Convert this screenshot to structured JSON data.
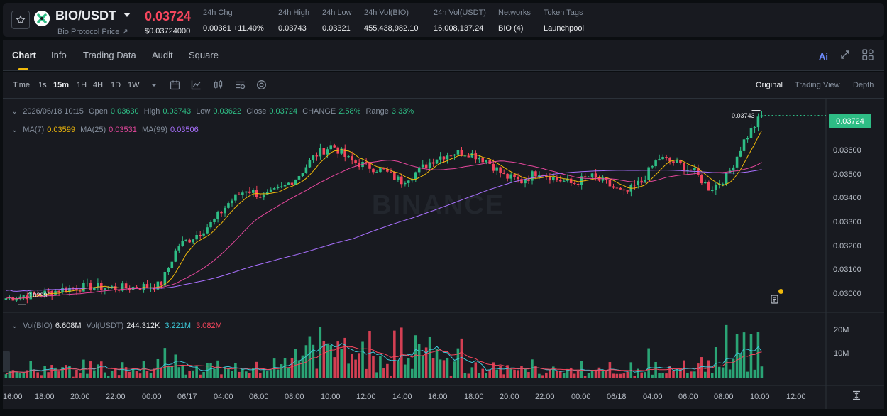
{
  "header": {
    "pair": "BIO/USDT",
    "pair_sub": "Bio Protocol Price ↗",
    "last_price": "0.03724",
    "last_price_usd": "$0.03724000",
    "stats": [
      {
        "label": "24h Chg",
        "value": "0.00381 +11.40%",
        "color": "#2ebd85"
      },
      {
        "label": "24h High",
        "value": "0.03743",
        "color": "#eaecef"
      },
      {
        "label": "24h Low",
        "value": "0.03321",
        "color": "#eaecef"
      },
      {
        "label": "24h Vol(BIO)",
        "value": "455,438,982.10",
        "color": "#eaecef"
      },
      {
        "label": "24h Vol(USDT)",
        "value": "16,008,137.24",
        "color": "#eaecef"
      },
      {
        "label": "Networks",
        "value": "BIO (4)",
        "color": "#eaecef"
      },
      {
        "label": "Token Tags",
        "value": "Launchpool",
        "color": "#f0b90b"
      }
    ]
  },
  "tabs": [
    "Chart",
    "Info",
    "Trading Data",
    "Audit",
    "Square"
  ],
  "tab_icons": {
    "ai": "Ai",
    "expand": "expand-icon",
    "layout": "layout-grid-icon"
  },
  "toolbar": {
    "timeframes": [
      "Time",
      "1s",
      "15m",
      "1H",
      "4H",
      "1D",
      "1W"
    ],
    "active_timeframe": "15m",
    "icons": [
      "more-timeframes-caret-icon",
      "calendar-icon",
      "indicators-icon",
      "candle-type-icon",
      "settings-icon",
      "target-icon"
    ],
    "views": [
      "Original",
      "Trading View",
      "Depth"
    ],
    "active_view": "Original"
  },
  "ohlc_legend": {
    "date": "2026/06/18 10:15",
    "open_label": "Open",
    "open": "0.03630",
    "high_label": "High",
    "high": "0.03743",
    "low_label": "Low",
    "low": "0.03622",
    "close_label": "Close",
    "close": "0.03724",
    "change_label": "CHANGE",
    "change": "2.58%",
    "range_label": "Range",
    "range": "3.33%"
  },
  "ma_legend": {
    "ma7_label": "MA(7)",
    "ma7": "0.03599",
    "ma25_label": "MA(25)",
    "ma25": "0.03531",
    "ma99_label": "MA(99)",
    "ma99": "0.03506"
  },
  "vol_legend": {
    "label_bio": "Vol(BIO)",
    "vol_bio": "6.608M",
    "label_usdt": "Vol(USDT)",
    "vol_usdt": "244.312K",
    "ma1": "3.221M",
    "ma2": "3.082M"
  },
  "price_tag": "0.03724",
  "high_marker": "0.03743",
  "low_marker": "0.02995",
  "watermark": "BINANCE",
  "price_axis": [
    "0.03600",
    "0.03500",
    "0.03400",
    "0.03300",
    "0.03200",
    "0.03100",
    "0.03000"
  ],
  "volume_axis": [
    "20M",
    "10M"
  ],
  "time_axis": [
    "16:00",
    "18:00",
    "20:00",
    "22:00",
    "00:00",
    "06/17",
    "04:00",
    "06:00",
    "08:00",
    "10:00",
    "12:00",
    "14:00",
    "16:00",
    "18:00",
    "20:00",
    "22:00",
    "00:00",
    "06/18",
    "04:00",
    "06:00",
    "08:00",
    "10:00",
    "12:00"
  ],
  "colors": {
    "up": "#2ebd85",
    "down": "#f6465d",
    "ma7": "#f0b90b",
    "ma25": "#e6479d",
    "ma99": "#a970ff",
    "vol_ma1": "#3dc9d9",
    "vol_ma2": "#f6465d",
    "accent": "#f0b90b"
  },
  "chart_data": {
    "type": "candlestick",
    "interval": "15m",
    "ylim": [
      0.0296,
      0.0378
    ],
    "close_path": [
      0.0302,
      0.0303,
      0.03035,
      0.0305,
      0.0306,
      0.03065,
      0.0306,
      0.0306,
      0.03065,
      0.0307,
      0.0322,
      0.0326,
      0.0331,
      0.0339,
      0.0344,
      0.0341,
      0.0344,
      0.0349,
      0.0357,
      0.0361,
      0.0355,
      0.0353,
      0.0351,
      0.0347,
      0.0351,
      0.0356,
      0.0358,
      0.0358,
      0.0355,
      0.0349,
      0.0347,
      0.0351,
      0.0348,
      0.0346,
      0.0349,
      0.0346,
      0.0342,
      0.0347,
      0.0356,
      0.0354,
      0.0351,
      0.0344,
      0.0349,
      0.0363,
      0.03724
    ],
    "last_close": 0.03724,
    "high": 0.03743,
    "low": 0.02995
  }
}
